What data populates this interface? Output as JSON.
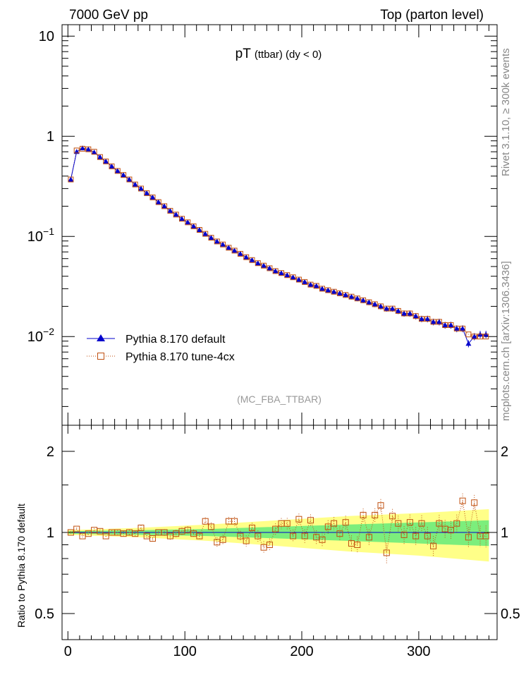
{
  "header": {
    "energy": "7000 GeV pp",
    "process": "Top (parton level)"
  },
  "side_labels": {
    "rivet": "Rivet 3.1.10, ≥ 300k events",
    "source": "mcplots.cern.ch [arXiv:1306.3436]"
  },
  "chart_data": [
    {
      "type": "line",
      "panel": "main",
      "title_main": "pT",
      "title_sub": "(ttbar) (dy < 0)",
      "analysis_tag": "(MC_FBA_TTBAR)",
      "y_scale": "log",
      "ylim": [
        0.0013,
        13
      ],
      "xlim": [
        -5,
        367
      ],
      "y_ticks": [
        {
          "value": 10,
          "label": "10"
        },
        {
          "value": 1,
          "label": "1"
        },
        {
          "value": 0.1,
          "label": "10",
          "exp": "−1"
        },
        {
          "value": 0.01,
          "label": "10",
          "exp": "−2"
        }
      ],
      "legend_position": "lower-left",
      "series": [
        {
          "name": "Pythia 8.170 default",
          "color": "#0000cc",
          "marker": "filled-triangle",
          "line": "solid",
          "x": [
            2.5,
            7.5,
            12.5,
            17.5,
            22.5,
            27.5,
            32.5,
            37.5,
            42.5,
            47.5,
            52.5,
            57.5,
            62.5,
            67.5,
            72.5,
            77.5,
            82.5,
            87.5,
            92.5,
            97.5,
            102.5,
            107.5,
            112.5,
            117.5,
            122.5,
            127.5,
            132.5,
            137.5,
            142.5,
            147.5,
            152.5,
            157.5,
            162.5,
            167.5,
            172.5,
            177.5,
            182.5,
            187.5,
            192.5,
            197.5,
            202.5,
            207.5,
            212.5,
            217.5,
            222.5,
            227.5,
            232.5,
            237.5,
            242.5,
            247.5,
            252.5,
            257.5,
            262.5,
            267.5,
            272.5,
            277.5,
            282.5,
            287.5,
            292.5,
            297.5,
            302.5,
            307.5,
            312.5,
            317.5,
            322.5,
            327.5,
            332.5,
            337.5,
            342.5,
            347.5,
            352.5,
            357.5
          ],
          "y": [
            0.37,
            0.7,
            0.76,
            0.74,
            0.69,
            0.62,
            0.56,
            0.5,
            0.45,
            0.41,
            0.37,
            0.33,
            0.3,
            0.27,
            0.245,
            0.22,
            0.2,
            0.18,
            0.165,
            0.15,
            0.138,
            0.126,
            0.116,
            0.106,
            0.097,
            0.089,
            0.083,
            0.077,
            0.072,
            0.067,
            0.062,
            0.058,
            0.054,
            0.051,
            0.048,
            0.045,
            0.043,
            0.041,
            0.039,
            0.037,
            0.035,
            0.033,
            0.032,
            0.03,
            0.029,
            0.028,
            0.027,
            0.026,
            0.025,
            0.024,
            0.023,
            0.022,
            0.021,
            0.02,
            0.019,
            0.019,
            0.018,
            0.017,
            0.017,
            0.016,
            0.015,
            0.015,
            0.014,
            0.014,
            0.013,
            0.013,
            0.012,
            0.012,
            0.0085,
            0.01,
            0.0105,
            0.0105
          ]
        },
        {
          "name": "Pythia 8.170 tune-4cx",
          "color": "#c05010",
          "marker": "open-square",
          "line": "dotted",
          "x": [
            2.5,
            7.5,
            12.5,
            17.5,
            22.5,
            27.5,
            32.5,
            37.5,
            42.5,
            47.5,
            52.5,
            57.5,
            62.5,
            67.5,
            72.5,
            77.5,
            82.5,
            87.5,
            92.5,
            97.5,
            102.5,
            107.5,
            112.5,
            117.5,
            122.5,
            127.5,
            132.5,
            137.5,
            142.5,
            147.5,
            152.5,
            157.5,
            162.5,
            167.5,
            172.5,
            177.5,
            182.5,
            187.5,
            192.5,
            197.5,
            202.5,
            207.5,
            212.5,
            217.5,
            222.5,
            227.5,
            232.5,
            237.5,
            242.5,
            247.5,
            252.5,
            257.5,
            262.5,
            267.5,
            272.5,
            277.5,
            282.5,
            287.5,
            292.5,
            297.5,
            302.5,
            307.5,
            312.5,
            317.5,
            322.5,
            327.5,
            332.5,
            337.5,
            342.5,
            347.5,
            352.5,
            357.5
          ],
          "y": [
            0.37,
            0.72,
            0.75,
            0.74,
            0.7,
            0.62,
            0.56,
            0.5,
            0.45,
            0.41,
            0.37,
            0.33,
            0.3,
            0.27,
            0.245,
            0.22,
            0.2,
            0.18,
            0.165,
            0.15,
            0.138,
            0.126,
            0.116,
            0.106,
            0.097,
            0.089,
            0.083,
            0.077,
            0.072,
            0.067,
            0.062,
            0.058,
            0.054,
            0.051,
            0.048,
            0.045,
            0.043,
            0.041,
            0.039,
            0.037,
            0.035,
            0.033,
            0.032,
            0.03,
            0.029,
            0.028,
            0.027,
            0.026,
            0.025,
            0.024,
            0.023,
            0.022,
            0.021,
            0.02,
            0.019,
            0.019,
            0.018,
            0.017,
            0.017,
            0.016,
            0.015,
            0.015,
            0.014,
            0.014,
            0.013,
            0.013,
            0.012,
            0.012,
            0.0105,
            0.01,
            0.01,
            0.01
          ]
        }
      ]
    },
    {
      "type": "line",
      "panel": "ratio",
      "ylabel": "Ratio to Pythia 8.170 default",
      "y_scale": "log",
      "ylim": [
        0.4,
        2.5
      ],
      "xlim": [
        -5,
        367
      ],
      "y_ticks": [
        {
          "value": 2,
          "label": "2"
        },
        {
          "value": 1,
          "label": "1"
        },
        {
          "value": 0.5,
          "label": "0.5"
        }
      ],
      "x_ticks": [
        {
          "value": 0,
          "label": "0"
        },
        {
          "value": 100,
          "label": "100"
        },
        {
          "value": 200,
          "label": "200"
        },
        {
          "value": 300,
          "label": "300"
        }
      ],
      "reference_bands": {
        "inner_color": "#7cee7c",
        "outer_color": "#ffff88",
        "x": [
          0,
          60,
          120,
          180,
          240,
          300,
          330,
          360
        ],
        "inner_halfwidth": [
          0.01,
          0.02,
          0.03,
          0.05,
          0.07,
          0.09,
          0.1,
          0.11
        ],
        "outer_halfwidth": [
          0.02,
          0.04,
          0.07,
          0.11,
          0.15,
          0.18,
          0.2,
          0.22
        ]
      },
      "series": [
        {
          "name": "Pythia 8.170 tune-4cx / default",
          "color": "#c05010",
          "marker": "open-square",
          "x": [
            2.5,
            7.5,
            12.5,
            17.5,
            22.5,
            27.5,
            32.5,
            37.5,
            42.5,
            47.5,
            52.5,
            57.5,
            62.5,
            67.5,
            72.5,
            77.5,
            82.5,
            87.5,
            92.5,
            97.5,
            102.5,
            107.5,
            112.5,
            117.5,
            122.5,
            127.5,
            132.5,
            137.5,
            142.5,
            147.5,
            152.5,
            157.5,
            162.5,
            167.5,
            172.5,
            177.5,
            182.5,
            187.5,
            192.5,
            197.5,
            202.5,
            207.5,
            212.5,
            217.5,
            222.5,
            227.5,
            232.5,
            237.5,
            242.5,
            247.5,
            252.5,
            257.5,
            262.5,
            267.5,
            272.5,
            277.5,
            282.5,
            287.5,
            292.5,
            297.5,
            302.5,
            307.5,
            312.5,
            317.5,
            322.5,
            327.5,
            332.5,
            337.5,
            342.5,
            347.5,
            352.5,
            357.5
          ],
          "y": [
            1.0,
            1.03,
            0.97,
            0.99,
            1.02,
            1.01,
            0.97,
            1.0,
            1.0,
            0.99,
            1.0,
            0.99,
            1.04,
            0.97,
            0.95,
            1.0,
            1.0,
            0.97,
            0.99,
            1.01,
            1.02,
            0.99,
            0.97,
            1.1,
            1.05,
            0.92,
            0.94,
            1.1,
            1.1,
            0.97,
            0.93,
            1.04,
            0.97,
            0.88,
            0.9,
            1.03,
            1.08,
            1.08,
            0.97,
            1.12,
            0.97,
            1.11,
            0.96,
            0.94,
            1.05,
            1.08,
            0.99,
            1.09,
            0.91,
            0.9,
            1.16,
            0.96,
            1.16,
            1.26,
            0.84,
            1.15,
            1.08,
            0.98,
            1.09,
            0.97,
            1.08,
            0.97,
            0.89,
            1.08,
            1.03,
            1.02,
            1.08,
            1.31,
            0.96,
            1.29,
            0.97,
            0.97
          ]
        }
      ]
    }
  ]
}
